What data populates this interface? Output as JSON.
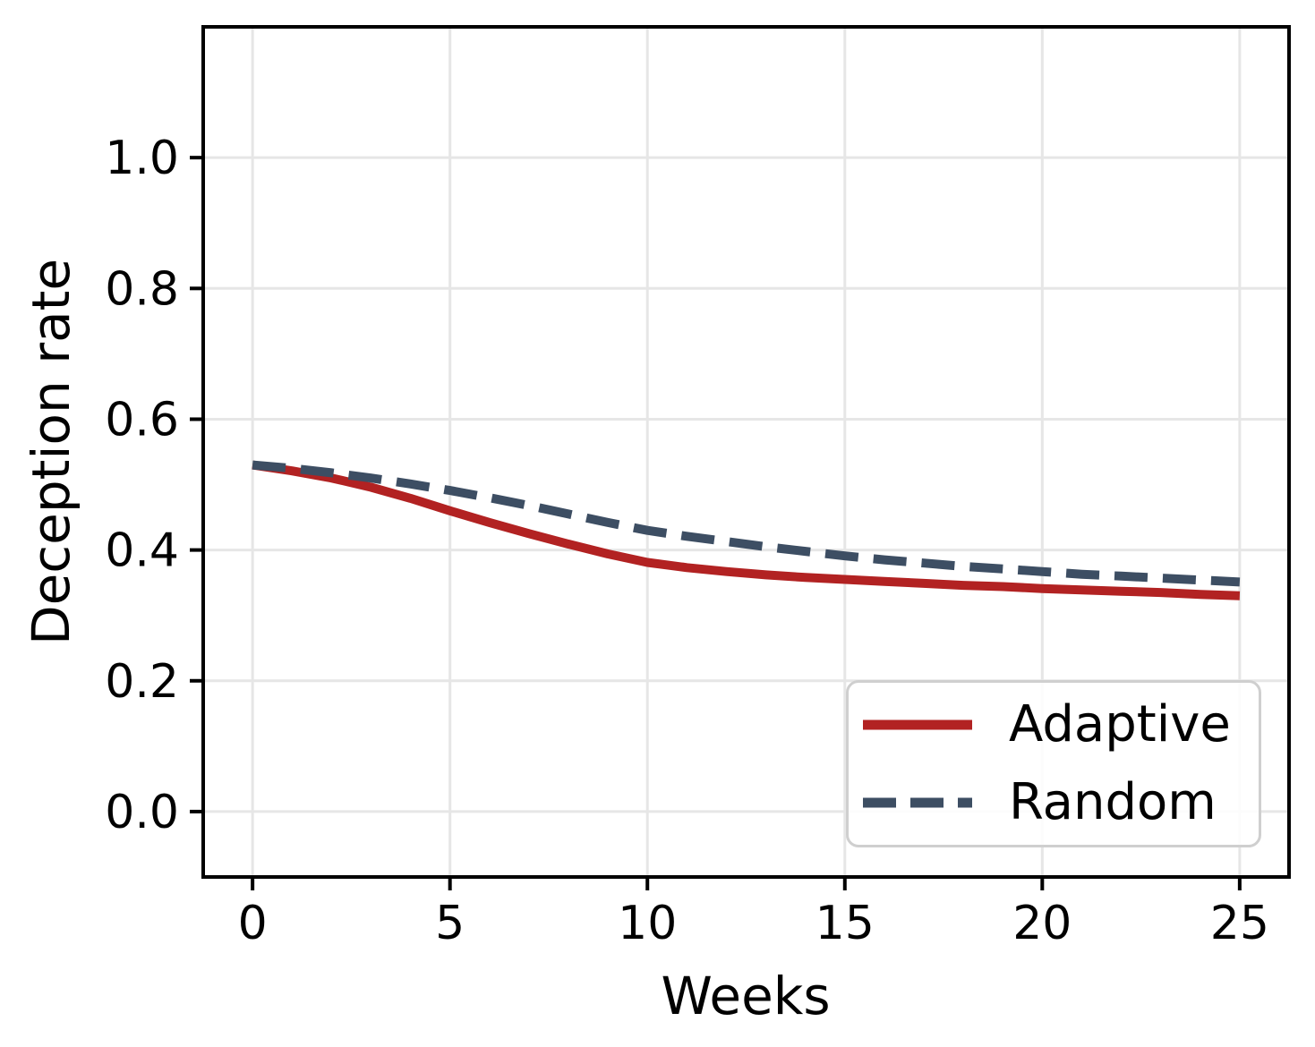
{
  "chart_data": {
    "type": "line",
    "title": "",
    "xlabel": "Weeks",
    "ylabel": "Deception rate",
    "xlim": [
      -1.25,
      26.25
    ],
    "ylim": [
      -0.1,
      1.2
    ],
    "xtick_values": [
      0,
      5,
      10,
      15,
      20,
      25
    ],
    "xtick_labels": [
      "0",
      "5",
      "10",
      "15",
      "20",
      "25"
    ],
    "ytick_values": [
      0.0,
      0.2,
      0.4,
      0.6,
      0.8,
      1.0
    ],
    "ytick_labels": [
      "0.0",
      "0.2",
      "0.4",
      "0.6",
      "0.8",
      "1.0"
    ],
    "grid": true,
    "legend_position": "lower-right",
    "x": [
      0,
      1,
      2,
      3,
      4,
      5,
      6,
      7,
      8,
      9,
      10,
      11,
      12,
      13,
      14,
      15,
      16,
      17,
      18,
      19,
      20,
      21,
      22,
      23,
      24,
      25
    ],
    "series": [
      {
        "name": "Adaptive",
        "color": "#b22222",
        "line_style": "solid",
        "line_width": 10,
        "values": [
          0.53,
          0.521,
          0.51,
          0.496,
          0.479,
          0.46,
          0.442,
          0.425,
          0.409,
          0.394,
          0.381,
          0.373,
          0.367,
          0.362,
          0.358,
          0.355,
          0.352,
          0.349,
          0.346,
          0.344,
          0.341,
          0.339,
          0.337,
          0.335,
          0.332,
          0.33
        ]
      },
      {
        "name": "Random",
        "color": "#3d4e63",
        "line_style": "dashed",
        "line_width": 10,
        "values": [
          0.53,
          0.525,
          0.518,
          0.51,
          0.501,
          0.491,
          0.48,
          0.468,
          0.455,
          0.442,
          0.43,
          0.421,
          0.413,
          0.405,
          0.398,
          0.391,
          0.385,
          0.38,
          0.375,
          0.371,
          0.367,
          0.363,
          0.36,
          0.357,
          0.354,
          0.351
        ]
      }
    ]
  },
  "styles": {
    "background": "#ffffff",
    "grid_color": "#e6e6e6",
    "spine_color": "#000000",
    "tick_color": "#000000",
    "text_color": "#000000",
    "legend_border_color": "#cfcfcf",
    "legend_background": "rgba(255,255,255,0.85)"
  }
}
